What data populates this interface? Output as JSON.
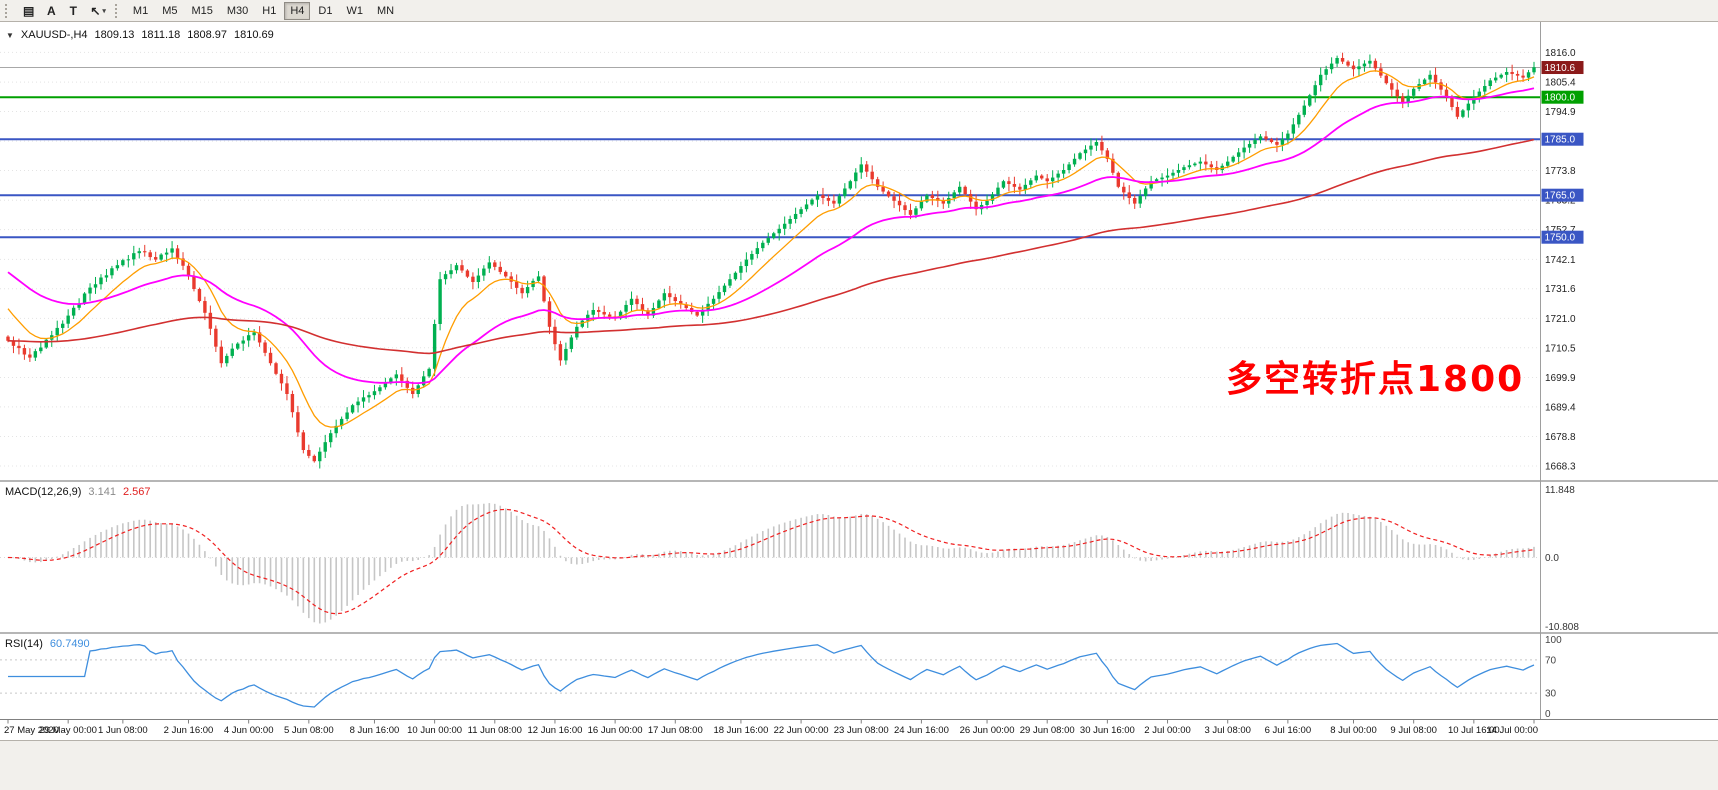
{
  "toolbar": {
    "tools": [
      {
        "name": "charts-grid-icon",
        "glyph": "▤"
      },
      {
        "name": "text-label-icon",
        "glyph": "A"
      },
      {
        "name": "text-tool-icon",
        "glyph": "T"
      },
      {
        "name": "cursor-dropdown-icon",
        "glyph": "↖",
        "dropdown": "▾"
      }
    ],
    "timeframes": [
      "M1",
      "M5",
      "M15",
      "M30",
      "H1",
      "H4",
      "D1",
      "W1",
      "MN"
    ],
    "active_timeframe": "H4"
  },
  "symbol_header": {
    "collapse_icon": "▼",
    "symbol": "XAUUSD-,H4",
    "open": "1809.13",
    "high": "1811.18",
    "low": "1808.97",
    "close": "1810.69"
  },
  "annotation": {
    "text": "多空转折点1800",
    "color": "#FF0000"
  },
  "indicators": {
    "macd": {
      "label": "MACD(12,26,9)",
      "value_main": "3.141",
      "value_signal": "2.567",
      "axis_labels": [
        "11.848",
        "0.0",
        "-10.808"
      ],
      "histogram_color": "#C6C6C6",
      "signal_color": "#F02020"
    },
    "rsi": {
      "label": "RSI(14)",
      "value": "60.7490",
      "axis_labels": [
        "100",
        "70",
        "30",
        "0"
      ],
      "levels": [
        70,
        30
      ],
      "line_color": "#3E8EDE"
    }
  },
  "chart_data": {
    "type": "candlestick",
    "symbol": "XAUUSD",
    "timeframe": "H4",
    "current_bar": {
      "open": 1809.13,
      "high": 1811.18,
      "low": 1808.97,
      "close": 1810.69
    },
    "current_price": 1810.69,
    "up_color": "#00B050",
    "down_color": "#E93A2E",
    "price_ticks": [
      1816.0,
      1805.4,
      1794.9,
      1784.3,
      1773.8,
      1763.2,
      1752.7,
      1742.1,
      1731.6,
      1721.0,
      1710.5,
      1699.9,
      1689.4,
      1678.8,
      1668.3
    ],
    "price_range": {
      "top": 1824.0,
      "bottom": 1664.0
    },
    "hlines": [
      {
        "price": 1810.6,
        "label": "1810.6",
        "line_color": "#A8A8A8",
        "badge_color": "#8B1A1A",
        "role": "bid-line",
        "width": 1
      },
      {
        "price": 1800.0,
        "label": "1800.0",
        "line_color": "#00A000",
        "badge_color": "#00A000",
        "role": "support-resistance",
        "width": 2
      },
      {
        "price": 1785.0,
        "label": "1785.0",
        "line_color": "#3A56C4",
        "badge_color": "#3A56C4",
        "role": "support-resistance",
        "width": 2
      },
      {
        "price": 1765.0,
        "label": "1765.0",
        "line_color": "#3A56C4",
        "badge_color": "#3A56C4",
        "role": "support-resistance",
        "width": 2
      },
      {
        "price": 1750.0,
        "label": "1750.0",
        "line_color": "#3A56C4",
        "badge_color": "#3A56C4",
        "role": "support-resistance",
        "width": 2
      }
    ],
    "moving_averages": [
      {
        "name": "fast-ma",
        "period": 10,
        "color": "#FF9D00",
        "init": 1727,
        "stroke": 1.3
      },
      {
        "name": "medium-ma",
        "period": 34,
        "color": "#FF00FF",
        "init": 1739,
        "stroke": 1.8
      },
      {
        "name": "slow-ma",
        "period": 120,
        "color": "#D23030",
        "init": 1713,
        "stroke": 1.6
      }
    ],
    "macd_params": [
      12,
      26,
      9
    ],
    "rsi_period": 14,
    "closes": [
      1713.0,
      1711.2,
      1710.4,
      1708.1,
      1707.0,
      1709.3,
      1710.6,
      1713.4,
      1715.0,
      1717.6,
      1719.1,
      1722.0,
      1724.8,
      1726.3,
      1729.9,
      1732.0,
      1733.2,
      1735.6,
      1736.4,
      1738.9,
      1740.0,
      1741.8,
      1742.1,
      1744.3,
      1745.0,
      1744.6,
      1742.9,
      1742.0,
      1743.8,
      1744.5,
      1746.0,
      1742.4,
      1739.8,
      1736.0,
      1731.5,
      1727.2,
      1723.0,
      1717.3,
      1710.9,
      1705.0,
      1707.6,
      1710.2,
      1712.0,
      1713.1,
      1715.0,
      1716.0,
      1712.4,
      1708.7,
      1705.0,
      1701.2,
      1697.8,
      1694.0,
      1687.5,
      1680.3,
      1674.0,
      1671.9,
      1670.0,
      1673.4,
      1676.8,
      1680.0,
      1682.6,
      1685.1,
      1687.4,
      1690.0,
      1691.3,
      1692.8,
      1693.6,
      1695.0,
      1696.4,
      1697.9,
      1699.6,
      1701.0,
      1698.7,
      1696.2,
      1694.0,
      1697.1,
      1700.3,
      1703.0,
      1719.0,
      1735.0,
      1736.8,
      1738.2,
      1740.0,
      1738.1,
      1735.9,
      1734.0,
      1736.3,
      1738.8,
      1741.0,
      1739.4,
      1737.6,
      1736.0,
      1734.1,
      1731.9,
      1730.0,
      1732.2,
      1734.4,
      1736.0,
      1727.1,
      1718.0,
      1711.8,
      1706.0,
      1710.1,
      1714.2,
      1718.0,
      1720.2,
      1722.3,
      1724.0,
      1723.3,
      1722.4,
      1721.7,
      1721.0,
      1723.4,
      1725.8,
      1728.0,
      1726.1,
      1723.9,
      1722.0,
      1724.7,
      1727.4,
      1730.0,
      1728.6,
      1727.2,
      1726.0,
      1724.7,
      1723.3,
      1722.0,
      1724.1,
      1726.2,
      1728.0,
      1730.4,
      1732.7,
      1735.0,
      1737.3,
      1739.7,
      1742.0,
      1744.0,
      1746.1,
      1748.0,
      1749.7,
      1751.4,
      1753.0,
      1754.8,
      1756.5,
      1758.3,
      1760.0,
      1761.7,
      1763.4,
      1765.0,
      1764.0,
      1763.0,
      1762.0,
      1764.7,
      1767.4,
      1770.0,
      1773.1,
      1776.0,
      1773.4,
      1770.7,
      1768.0,
      1766.3,
      1764.6,
      1763.0,
      1761.4,
      1759.7,
      1758.0,
      1760.3,
      1762.7,
      1765.0,
      1764.0,
      1763.0,
      1762.0,
      1764.0,
      1766.0,
      1768.0,
      1765.4,
      1762.7,
      1760.0,
      1761.5,
      1763.0,
      1765.3,
      1767.7,
      1770.0,
      1769.0,
      1768.0,
      1767.0,
      1768.7,
      1770.3,
      1772.0,
      1771.0,
      1770.0,
      1771.3,
      1772.7,
      1774.0,
      1776.0,
      1778.0,
      1780.0,
      1781.3,
      1782.7,
      1784.0,
      1781.0,
      1778.0,
      1773.0,
      1768.0,
      1766.0,
      1764.0,
      1762.0,
      1764.7,
      1767.4,
      1770.0,
      1770.7,
      1771.3,
      1772.0,
      1773.0,
      1774.0,
      1775.0,
      1775.7,
      1776.3,
      1777.0,
      1776.0,
      1775.0,
      1774.0,
      1775.5,
      1777.0,
      1778.7,
      1780.3,
      1782.0,
      1783.3,
      1784.7,
      1786.0,
      1785.0,
      1784.0,
      1783.0,
      1785.0,
      1787.0,
      1790.3,
      1793.7,
      1797.0,
      1800.7,
      1804.3,
      1808.0,
      1810.0,
      1812.0,
      1814.0,
      1812.7,
      1811.3,
      1810.0,
      1811.0,
      1812.0,
      1813.0,
      1810.3,
      1807.7,
      1805.0,
      1802.7,
      1800.3,
      1798.0,
      1800.5,
      1803.0,
      1804.7,
      1806.3,
      1808.0,
      1805.3,
      1802.7,
      1800.0,
      1796.5,
      1793.0,
      1795.3,
      1797.7,
      1800.0,
      1802.0,
      1804.0,
      1806.0,
      1807.0,
      1808.0,
      1809.0,
      1808.3,
      1807.7,
      1807.0,
      1808.9,
      1810.7
    ],
    "x_labels": [
      "27 May 2020",
      "29 May 00:00",
      "1 Jun 08:00",
      "2 Jun 16:00",
      "4 Jun 00:00",
      "5 Jun 08:00",
      "8 Jun 16:00",
      "10 Jun 00:00",
      "11 Jun 08:00",
      "12 Jun 16:00",
      "16 Jun 00:00",
      "17 Jun 08:00",
      "18 Jun 16:00",
      "22 Jun 00:00",
      "23 Jun 08:00",
      "24 Jun 16:00",
      "26 Jun 00:00",
      "29 Jun 08:00",
      "30 Jun 16:00",
      "2 Jul 00:00",
      "3 Jul 08:00",
      "6 Jul 16:00",
      "8 Jul 00:00",
      "9 Jul 08:00",
      "10 Jul 16:00",
      "14 Jul 00:00"
    ],
    "x_label_indices": [
      0,
      11,
      21,
      33,
      44,
      55,
      67,
      78,
      89,
      100,
      111,
      122,
      134,
      145,
      156,
      167,
      179,
      190,
      201,
      212,
      223,
      234,
      246,
      257,
      268,
      279
    ]
  }
}
